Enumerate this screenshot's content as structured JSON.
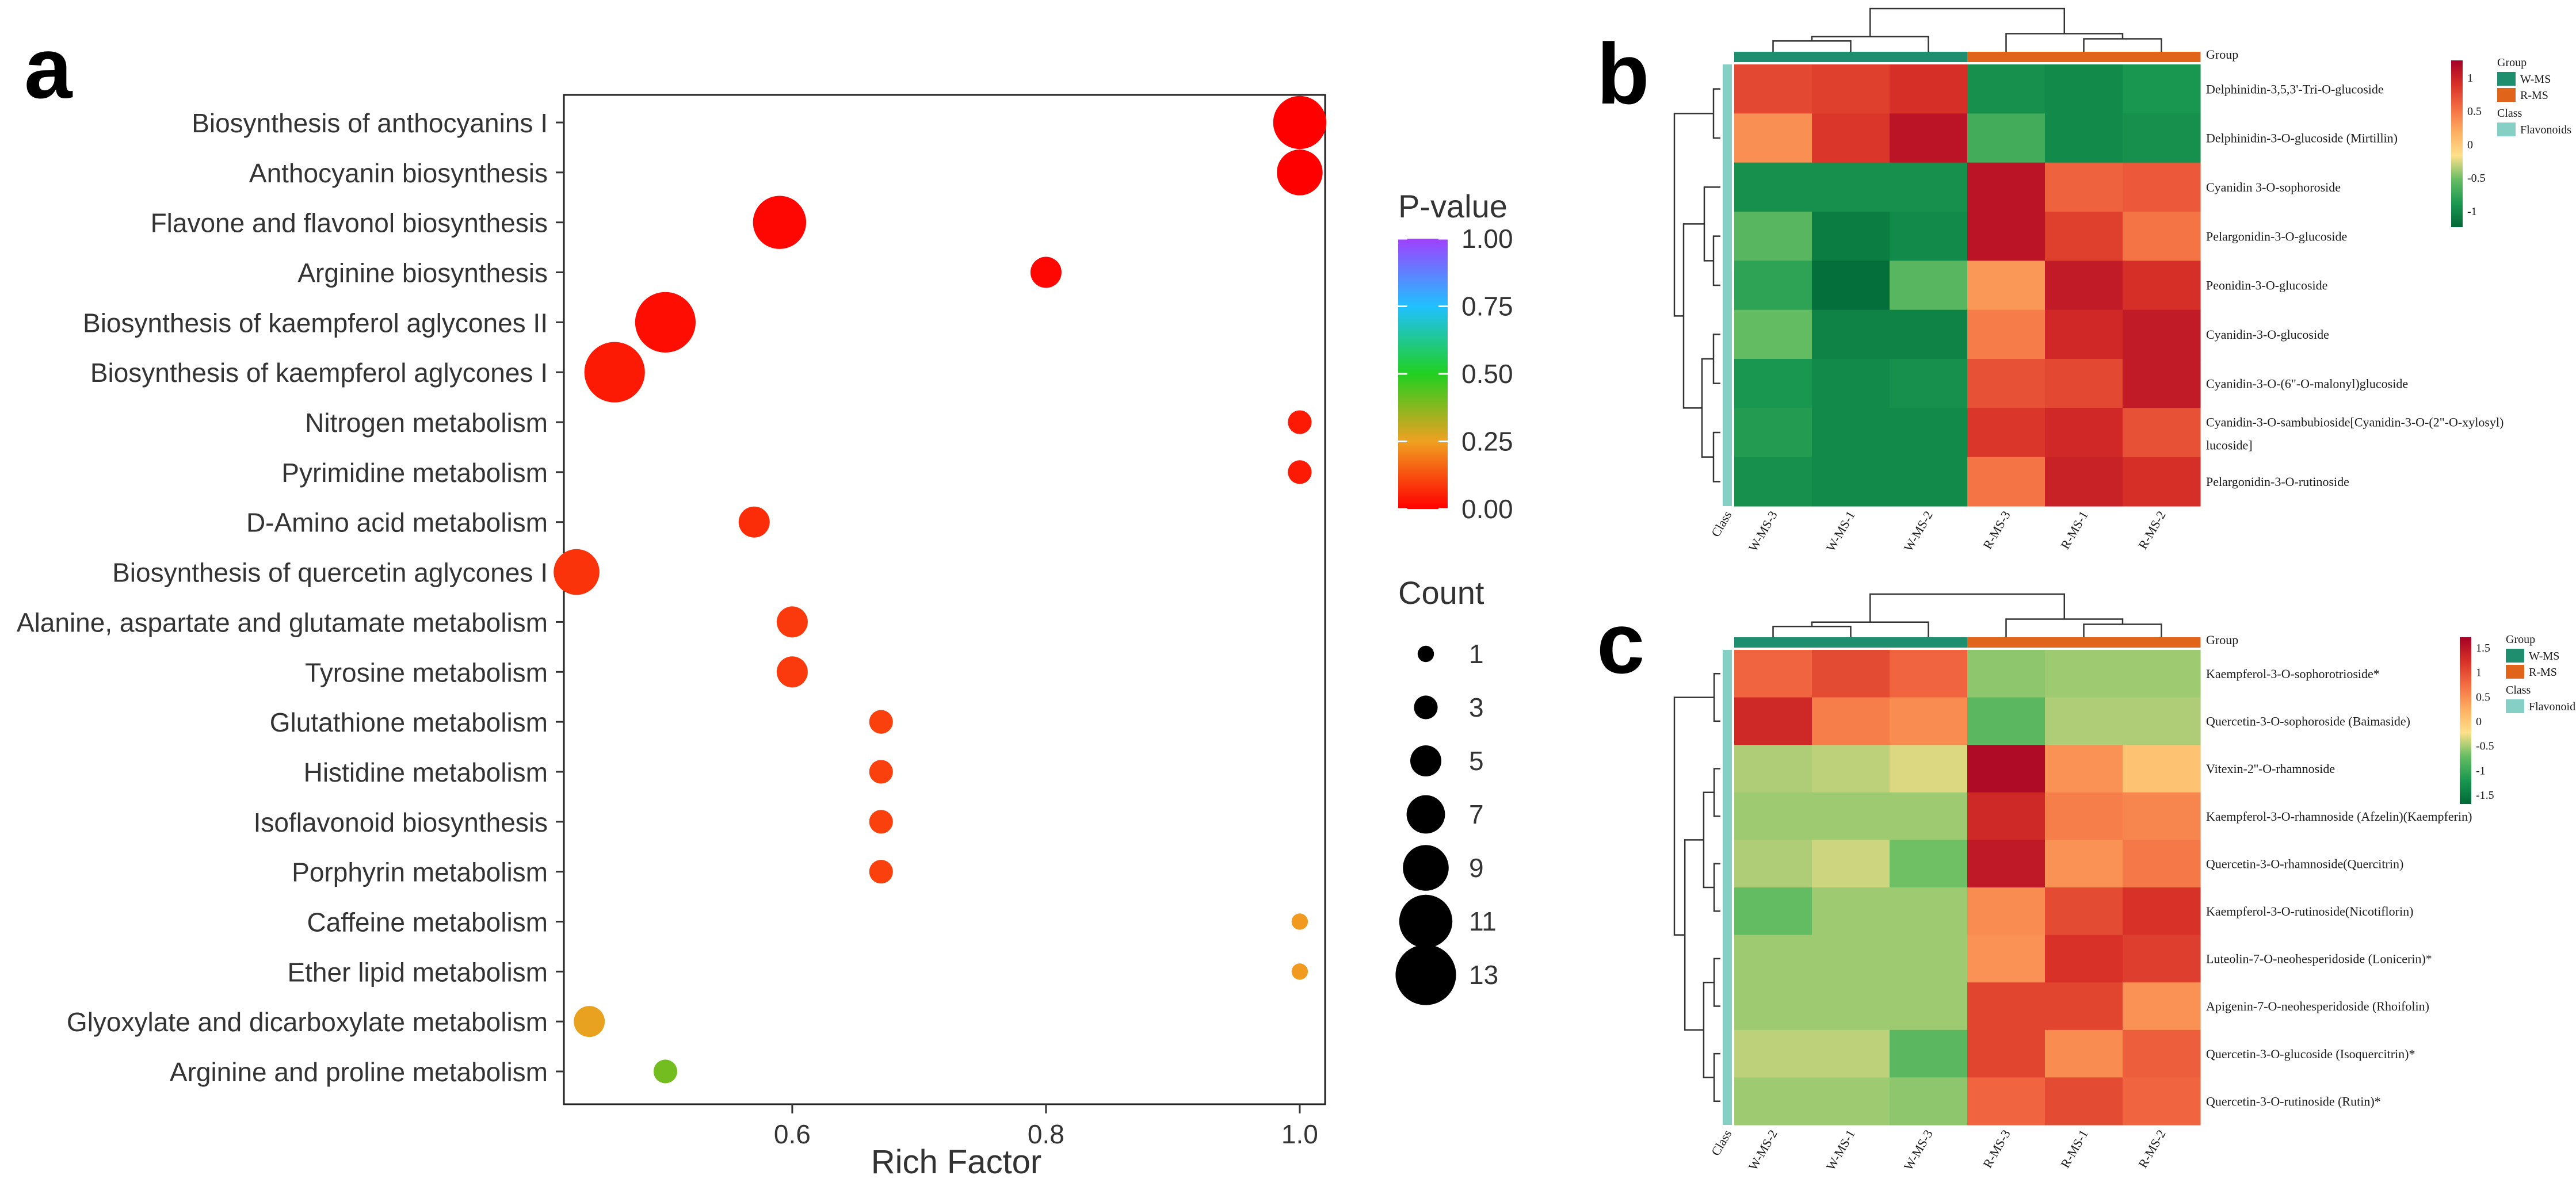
{
  "chart_data": [
    {
      "panel": "a",
      "type": "scatter",
      "xlabel": "Rich Factor",
      "xlim": [
        0.42,
        1.02
      ],
      "xticks": [
        0.6,
        0.8,
        1.0
      ],
      "xtick_labels": [
        "0.6",
        "0.8",
        "1.0"
      ],
      "pathways": [
        {
          "name": "Biosynthesis of anthocyanins I",
          "rich": 1.0,
          "pvalue": 0.0,
          "count": 11
        },
        {
          "name": "Anthocyanin biosynthesis",
          "rich": 1.0,
          "pvalue": 0.0,
          "count": 9
        },
        {
          "name": "Flavone and flavonol biosynthesis",
          "rich": 0.59,
          "pvalue": 0.01,
          "count": 11
        },
        {
          "name": "Arginine biosynthesis",
          "rich": 0.8,
          "pvalue": 0.01,
          "count": 5
        },
        {
          "name": "Biosynthesis of kaempferol aglycones II",
          "rich": 0.5,
          "pvalue": 0.02,
          "count": 13
        },
        {
          "name": "Biosynthesis of kaempferol aglycones I",
          "rich": 0.46,
          "pvalue": 0.04,
          "count": 13
        },
        {
          "name": "Nitrogen metabolism",
          "rich": 1.0,
          "pvalue": 0.04,
          "count": 3
        },
        {
          "name": "Pyrimidine metabolism",
          "rich": 1.0,
          "pvalue": 0.04,
          "count": 3
        },
        {
          "name": "D-Amino acid metabolism",
          "rich": 0.57,
          "pvalue": 0.07,
          "count": 5
        },
        {
          "name": "Biosynthesis of quercetin aglycones I",
          "rich": 0.43,
          "pvalue": 0.08,
          "count": 9
        },
        {
          "name": "Alanine, aspartate and glutamate metabolism",
          "rich": 0.6,
          "pvalue": 0.09,
          "count": 5
        },
        {
          "name": "Tyrosine metabolism",
          "rich": 0.6,
          "pvalue": 0.09,
          "count": 5
        },
        {
          "name": "Glutathione metabolism",
          "rich": 0.67,
          "pvalue": 0.1,
          "count": 3
        },
        {
          "name": "Histidine metabolism",
          "rich": 0.67,
          "pvalue": 0.1,
          "count": 3
        },
        {
          "name": "Isoflavonoid biosynthesis",
          "rich": 0.67,
          "pvalue": 0.1,
          "count": 3
        },
        {
          "name": "Porphyrin metabolism",
          "rich": 0.67,
          "pvalue": 0.1,
          "count": 3
        },
        {
          "name": "Caffeine metabolism",
          "rich": 1.0,
          "pvalue": 0.24,
          "count": 1
        },
        {
          "name": "Ether lipid metabolism",
          "rich": 1.0,
          "pvalue": 0.24,
          "count": 1
        },
        {
          "name": "Glyoxylate and dicarboxylate metabolism",
          "rich": 0.44,
          "pvalue": 0.26,
          "count": 5
        },
        {
          "name": "Arginine and proline metabolism",
          "rich": 0.5,
          "pvalue": 0.4,
          "count": 3
        }
      ],
      "color_legend": {
        "title": "P-value",
        "ticks": [
          "1.00",
          "0.75",
          "0.50",
          "0.25",
          "0.00"
        ],
        "tick_values": [
          1.0,
          0.75,
          0.5,
          0.25,
          0.0
        ],
        "stops": [
          {
            "value": 0.0,
            "color": "#ff0000"
          },
          {
            "value": 0.25,
            "color": "#f0a020"
          },
          {
            "value": 0.5,
            "color": "#20d020"
          },
          {
            "value": 0.75,
            "color": "#20c0ff"
          },
          {
            "value": 1.0,
            "color": "#a040ff"
          }
        ]
      },
      "size_legend": {
        "title": "Count",
        "values": [
          1,
          3,
          5,
          7,
          9,
          11,
          13
        ]
      }
    },
    {
      "panel": "b",
      "type": "heatmap",
      "columns": [
        "W-MS-3",
        "W-MS-1",
        "W-MS-2",
        "R-MS-3",
        "R-MS-1",
        "R-MS-2"
      ],
      "column_groups": [
        "W-MS",
        "W-MS",
        "W-MS",
        "R-MS",
        "R-MS",
        "R-MS"
      ],
      "class_label": "Class",
      "group_label": "Group",
      "rows": [
        {
          "label": "Delphinidin-3,5,3'-Tri-O-glucoside",
          "values": [
            0.75,
            0.8,
            0.9,
            -0.95,
            -1.0,
            -0.9
          ]
        },
        {
          "label": "Delphinidin-3-O-glucoside (Mirtillin)",
          "values": [
            0.35,
            0.85,
            1.1,
            -0.7,
            -1.0,
            -0.95
          ]
        },
        {
          "label": "Cyanidin 3-O-sophoroside",
          "values": [
            -0.95,
            -0.95,
            -0.95,
            1.1,
            0.6,
            0.65
          ]
        },
        {
          "label": "Pelargonidin-3-O-glucoside",
          "values": [
            -0.6,
            -1.1,
            -1.0,
            1.1,
            0.8,
            0.5
          ]
        },
        {
          "label": "Peonidin-3-O-glucoside",
          "values": [
            -0.8,
            -1.2,
            -0.6,
            0.3,
            1.05,
            0.9
          ]
        },
        {
          "label": "Cyanidin-3-O-glucoside",
          "values": [
            -0.55,
            -1.05,
            -1.05,
            0.45,
            0.95,
            1.05
          ]
        },
        {
          "label": "Cyanidin-3-O-(6\"-O-malonyl)glucoside",
          "values": [
            -0.9,
            -1.0,
            -0.95,
            0.7,
            0.75,
            1.05
          ]
        },
        {
          "label": "Cyanidin-3-O-sambubioside[Cyanidin-3-O-(2\"-O-xylosyl)",
          "label2": "lucoside]",
          "values": [
            -0.85,
            -1.0,
            -1.0,
            0.85,
            0.95,
            0.7
          ]
        },
        {
          "label": "Pelargonidin-3-O-rutinoside",
          "values": [
            -0.95,
            -1.0,
            -1.0,
            0.5,
            1.0,
            0.9
          ]
        }
      ],
      "scale": {
        "ticks": [
          "1",
          "0.5",
          "0",
          "-0.5",
          "-1"
        ],
        "tick_values": [
          1,
          0.5,
          0,
          -0.5,
          -1
        ],
        "min": -1.25,
        "max": 1.25
      },
      "legend": {
        "group_title": "Group",
        "groups": [
          {
            "name": "W-MS",
            "color": "#1e8e6e"
          },
          {
            "name": "R-MS",
            "color": "#e0651a"
          }
        ],
        "class_title": "Class",
        "classes": [
          {
            "name": "Flavonoids",
            "color": "#86cfc5"
          }
        ]
      }
    },
    {
      "panel": "c",
      "type": "heatmap",
      "columns": [
        "W-MS-2",
        "W-MS-1",
        "W-MS-3",
        "R-MS-3",
        "R-MS-1",
        "R-MS-2"
      ],
      "column_groups": [
        "W-MS",
        "W-MS",
        "W-MS",
        "R-MS",
        "R-MS",
        "R-MS"
      ],
      "class_label": "Class",
      "group_label": "Group",
      "rows": [
        {
          "label": "Kaempferol-3-O-sophorotrioside*",
          "values": [
            0.8,
            1.0,
            0.8,
            -0.6,
            -0.55,
            -0.55
          ]
        },
        {
          "label": "Quercetin-3-O-sophoroside (Baimaside)",
          "values": [
            1.3,
            0.6,
            0.5,
            -0.8,
            -0.5,
            -0.5
          ]
        },
        {
          "label": "Vitexin-2''-O-rhamnoside",
          "values": [
            -0.5,
            -0.45,
            -0.35,
            1.6,
            0.45,
            0.05
          ]
        },
        {
          "label": "Kaempferol-3-O-rhamnoside (Afzelin)(Kaempferin)",
          "values": [
            -0.55,
            -0.55,
            -0.55,
            1.3,
            0.6,
            0.55
          ]
        },
        {
          "label": "Quercetin-3-O-rhamnoside(Quercitrin)",
          "values": [
            -0.5,
            -0.4,
            -0.7,
            1.45,
            0.45,
            0.65
          ]
        },
        {
          "label": "Kaempferol-3-O-rutinoside(Nicotiflorin)",
          "values": [
            -0.75,
            -0.55,
            -0.55,
            0.5,
            1.0,
            1.2
          ]
        },
        {
          "label": "Luteolin-7-O-neohesperidoside (Lonicerin)*",
          "values": [
            -0.55,
            -0.55,
            -0.55,
            0.45,
            1.2,
            1.1
          ]
        },
        {
          "label": "Apigenin-7-O-neohesperidoside (Rhoifolin)",
          "values": [
            -0.55,
            -0.55,
            -0.55,
            1.05,
            1.05,
            0.45
          ]
        },
        {
          "label": "Quercetin-3-O-glucoside (Isoquercitrin)*",
          "values": [
            -0.45,
            -0.45,
            -0.8,
            1.05,
            0.5,
            0.85
          ]
        },
        {
          "label": "Quercetin-3-O-rutinoside (Rutin)*",
          "values": [
            -0.55,
            -0.55,
            -0.6,
            0.8,
            1.0,
            0.8
          ]
        }
      ],
      "scale": {
        "ticks": [
          "1.5",
          "1",
          "0.5",
          "0",
          "-0.5",
          "-1",
          "-1.5"
        ],
        "tick_values": [
          1.5,
          1,
          0.5,
          0,
          -0.5,
          -1,
          -1.5
        ],
        "min": -1.7,
        "max": 1.7
      },
      "legend": {
        "group_title": "Group",
        "groups": [
          {
            "name": "W-MS",
            "color": "#1e8e6e"
          },
          {
            "name": "R-MS",
            "color": "#e0651a"
          }
        ],
        "class_title": "Class",
        "classes": [
          {
            "name": "Flavonoids",
            "color": "#86cfc5"
          }
        ]
      }
    }
  ],
  "panel_labels": [
    "a",
    "b",
    "c"
  ],
  "heatmap_palette": [
    "#006837",
    "#1a9850",
    "#66bd63",
    "#fee08b",
    "#fdae61",
    "#f46d43",
    "#d73027",
    "#a50026"
  ]
}
